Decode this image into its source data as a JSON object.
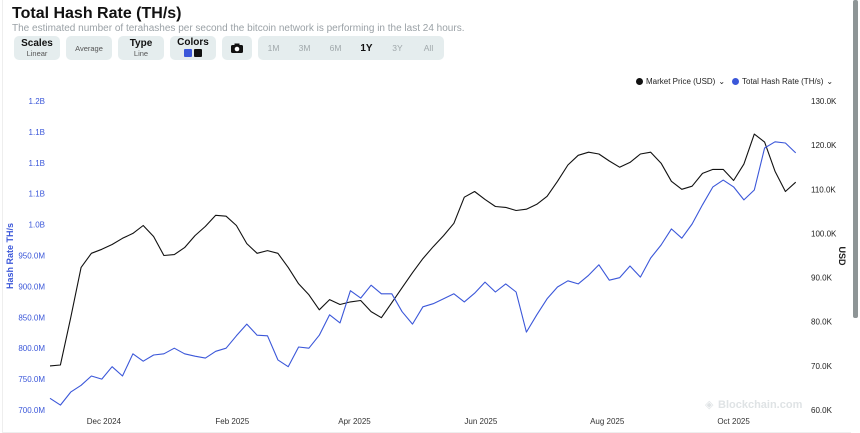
{
  "header": {
    "title": "Total Hash Rate (TH/s)",
    "subtitle": "The estimated number of terahashes per second the bitcoin network is performing in the last 24 hours."
  },
  "toolbar": {
    "scales_label": "Scales",
    "scales_value": "Linear",
    "average_label": "Average",
    "type_label": "Type",
    "type_value": "Line",
    "colors_label": "Colors",
    "camera_icon": "camera-icon",
    "ranges": [
      "1M",
      "3M",
      "6M",
      "1Y",
      "3Y",
      "All"
    ],
    "active_range": "1Y"
  },
  "colors": {
    "hash_rate": "#3b57d9",
    "market_price": "#111111"
  },
  "watermark": "Blockchain.com",
  "chart_data": {
    "type": "line",
    "legend_placement": "top-right",
    "grid": false,
    "xlim": [
      "2024-11-05",
      "2025-11-04"
    ],
    "x_ticks": [
      "Dec 2024",
      "Feb 2025",
      "Apr 2025",
      "Jun 2025",
      "Aug 2025",
      "Oct 2025"
    ],
    "y_left": {
      "label": "Hash Rate TH/s",
      "lim_millions": [
        700,
        1200
      ],
      "ticks": [
        "700.0M",
        "750.0M",
        "800.0M",
        "850.0M",
        "900.0M",
        "950.0M",
        "1.0B",
        "1.1B",
        "1.1B",
        "1.1B",
        "1.2B"
      ]
    },
    "y_right": {
      "label": "USD",
      "lim_thousands": [
        60,
        130
      ],
      "ticks": [
        "60.0K",
        "70.0K",
        "80.0K",
        "90.0K",
        "100.0K",
        "110.0K",
        "120.0K",
        "130.0K"
      ]
    },
    "x": [
      "2024-11-05",
      "2024-11-10",
      "2024-11-15",
      "2024-11-20",
      "2024-11-25",
      "2024-11-30",
      "2024-12-05",
      "2024-12-10",
      "2024-12-15",
      "2024-12-20",
      "2024-12-25",
      "2024-12-30",
      "2025-01-04",
      "2025-01-09",
      "2025-01-14",
      "2025-01-19",
      "2025-01-24",
      "2025-01-29",
      "2025-02-03",
      "2025-02-08",
      "2025-02-13",
      "2025-02-18",
      "2025-02-23",
      "2025-02-28",
      "2025-03-05",
      "2025-03-10",
      "2025-03-15",
      "2025-03-20",
      "2025-03-25",
      "2025-03-30",
      "2025-04-04",
      "2025-04-09",
      "2025-04-14",
      "2025-04-19",
      "2025-04-24",
      "2025-04-29",
      "2025-05-04",
      "2025-05-09",
      "2025-05-14",
      "2025-05-19",
      "2025-05-24",
      "2025-05-29",
      "2025-06-03",
      "2025-06-08",
      "2025-06-13",
      "2025-06-18",
      "2025-06-23",
      "2025-06-28",
      "2025-07-03",
      "2025-07-08",
      "2025-07-13",
      "2025-07-18",
      "2025-07-23",
      "2025-07-28",
      "2025-08-02",
      "2025-08-07",
      "2025-08-12",
      "2025-08-17",
      "2025-08-22",
      "2025-08-27",
      "2025-09-01",
      "2025-09-06",
      "2025-09-11",
      "2025-09-16",
      "2025-09-21",
      "2025-09-26",
      "2025-10-01",
      "2025-10-06",
      "2025-10-11",
      "2025-10-16",
      "2025-10-21",
      "2025-10-26",
      "2025-10-31"
    ],
    "series": [
      {
        "name": "Market Price (USD)",
        "axis": "right",
        "unit": "K USD",
        "values": [
          70.0,
          70.2,
          80.9,
          92.3,
          95.5,
          96.4,
          97.5,
          98.9,
          100.0,
          101.8,
          99.3,
          95.0,
          95.2,
          96.8,
          99.5,
          101.6,
          104.1,
          103.9,
          101.8,
          97.7,
          95.5,
          96.1,
          95.5,
          92.3,
          88.6,
          86.1,
          82.7,
          85.0,
          83.9,
          84.5,
          84.8,
          82.3,
          80.9,
          84.3,
          87.7,
          91.1,
          94.3,
          97.0,
          99.5,
          102.3,
          108.2,
          109.5,
          107.7,
          106.1,
          105.9,
          105.2,
          105.5,
          106.6,
          108.4,
          111.8,
          115.5,
          117.7,
          118.4,
          118.0,
          116.4,
          115.0,
          116.1,
          118.0,
          118.4,
          115.9,
          111.8,
          110.0,
          110.7,
          113.6,
          114.5,
          114.5,
          112.0,
          115.7,
          122.5,
          120.7,
          114.1,
          109.5,
          111.6
        ]
      },
      {
        "name": "Total Hash Rate (TH/s)",
        "axis": "left",
        "unit": "M TH/s",
        "values": [
          719,
          708,
          729,
          740,
          755,
          750,
          770,
          755,
          791,
          779,
          789,
          791,
          800,
          791,
          787,
          784,
          795,
          800,
          820,
          839,
          821,
          820,
          781,
          770,
          802,
          800,
          821,
          854,
          841,
          893,
          881,
          902,
          888,
          888,
          859,
          839,
          867,
          872,
          880,
          888,
          875,
          889,
          907,
          891,
          904,
          891,
          826,
          854,
          880,
          899,
          909,
          904,
          918,
          935,
          910,
          914,
          933,
          915,
          946,
          967,
          993,
          978,
          1001,
          1032,
          1061,
          1072,
          1061,
          1040,
          1056,
          1124,
          1134,
          1132,
          1116
        ]
      }
    ]
  }
}
